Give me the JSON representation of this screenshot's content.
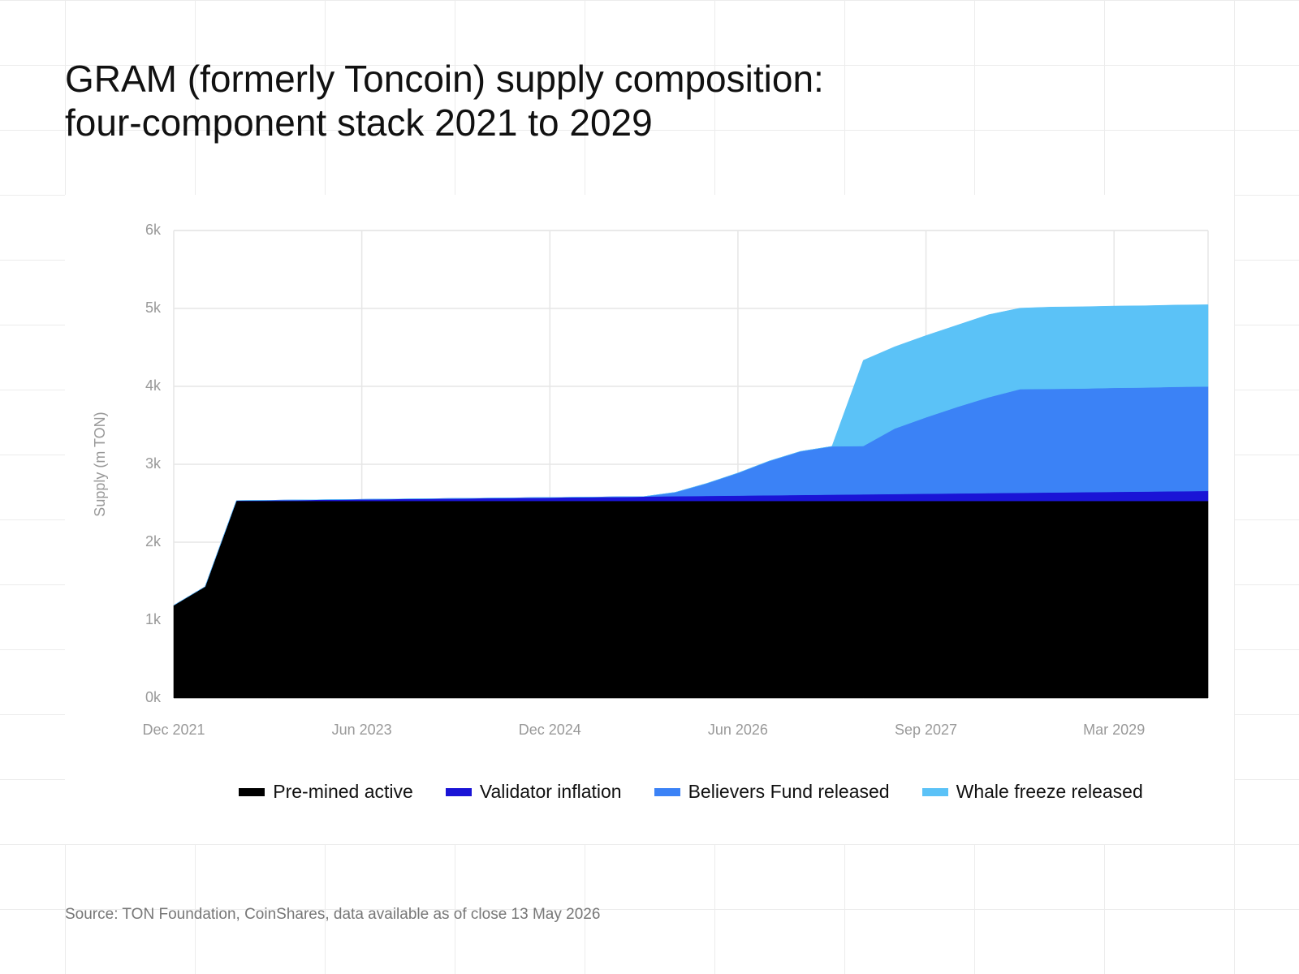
{
  "chart_data": {
    "type": "area",
    "stacked": true,
    "title": [
      "GRAM (formerly Toncoin) supply composition:",
      "four-component stack 2021 to 2029"
    ],
    "y_label": "Supply (m TON)",
    "source": "Source: TON Foundation, CoinShares, data available as of close 13 May 2026",
    "categories": [
      "Dec 2021",
      null,
      null,
      null,
      null,
      null,
      "Jun 2023",
      null,
      null,
      null,
      null,
      null,
      "Dec 2024",
      null,
      null,
      null,
      null,
      null,
      "Jun 2026",
      null,
      null,
      null,
      null,
      null,
      "Sep 2027",
      null,
      null,
      null,
      null,
      null,
      "Mar 2029",
      null,
      null,
      null
    ],
    "ylim": [
      0,
      6000
    ],
    "yticks": [
      {
        "value": 0,
        "label": "0k"
      },
      {
        "value": 1000,
        "label": "1k"
      },
      {
        "value": 2000,
        "label": "2k"
      },
      {
        "value": 3000,
        "label": "3k"
      },
      {
        "value": 4000,
        "label": "4k"
      },
      {
        "value": 5000,
        "label": "5k"
      },
      {
        "value": 6000,
        "label": "6k"
      }
    ],
    "grid": true,
    "series": [
      {
        "name": "Pre-mined active",
        "color": "#000000",
        "values": [
          1190,
          1430,
          2530,
          2530,
          2530,
          2530,
          2530,
          2530,
          2530,
          2530,
          2530,
          2530,
          2530,
          2530,
          2530,
          2530,
          2530,
          2530,
          2530,
          2530,
          2530,
          2530,
          2530,
          2530,
          2530,
          2530,
          2530,
          2530,
          2530,
          2530,
          2530,
          2530,
          2530,
          2530
        ]
      },
      {
        "name": "Validator inflation",
        "color": "#1a14d6",
        "values": [
          0,
          0,
          4,
          8,
          12,
          16,
          20,
          24,
          28,
          32,
          36,
          40,
          44,
          48,
          52,
          56,
          60,
          64,
          68,
          72,
          76,
          80,
          84,
          88,
          92,
          96,
          100,
          104,
          108,
          112,
          116,
          120,
          124,
          128
        ]
      },
      {
        "name": "Believers Fund released",
        "color": "#3b82f6",
        "values": [
          0,
          0,
          0,
          0,
          0,
          0,
          0,
          0,
          0,
          0,
          0,
          0,
          0,
          0,
          0,
          0,
          50,
          160,
          290,
          440,
          560,
          620,
          620,
          840,
          980,
          1110,
          1230,
          1330,
          1330,
          1330,
          1335,
          1335,
          1340,
          1340
        ]
      },
      {
        "name": "Whale freeze released",
        "color": "#5bc2f7",
        "values": [
          0,
          0,
          0,
          0,
          0,
          0,
          0,
          0,
          0,
          0,
          0,
          0,
          0,
          0,
          0,
          0,
          0,
          0,
          0,
          0,
          0,
          0,
          1100,
          1050,
          1050,
          1050,
          1060,
          1040,
          1050,
          1050,
          1050,
          1050,
          1050,
          1050
        ]
      }
    ]
  }
}
